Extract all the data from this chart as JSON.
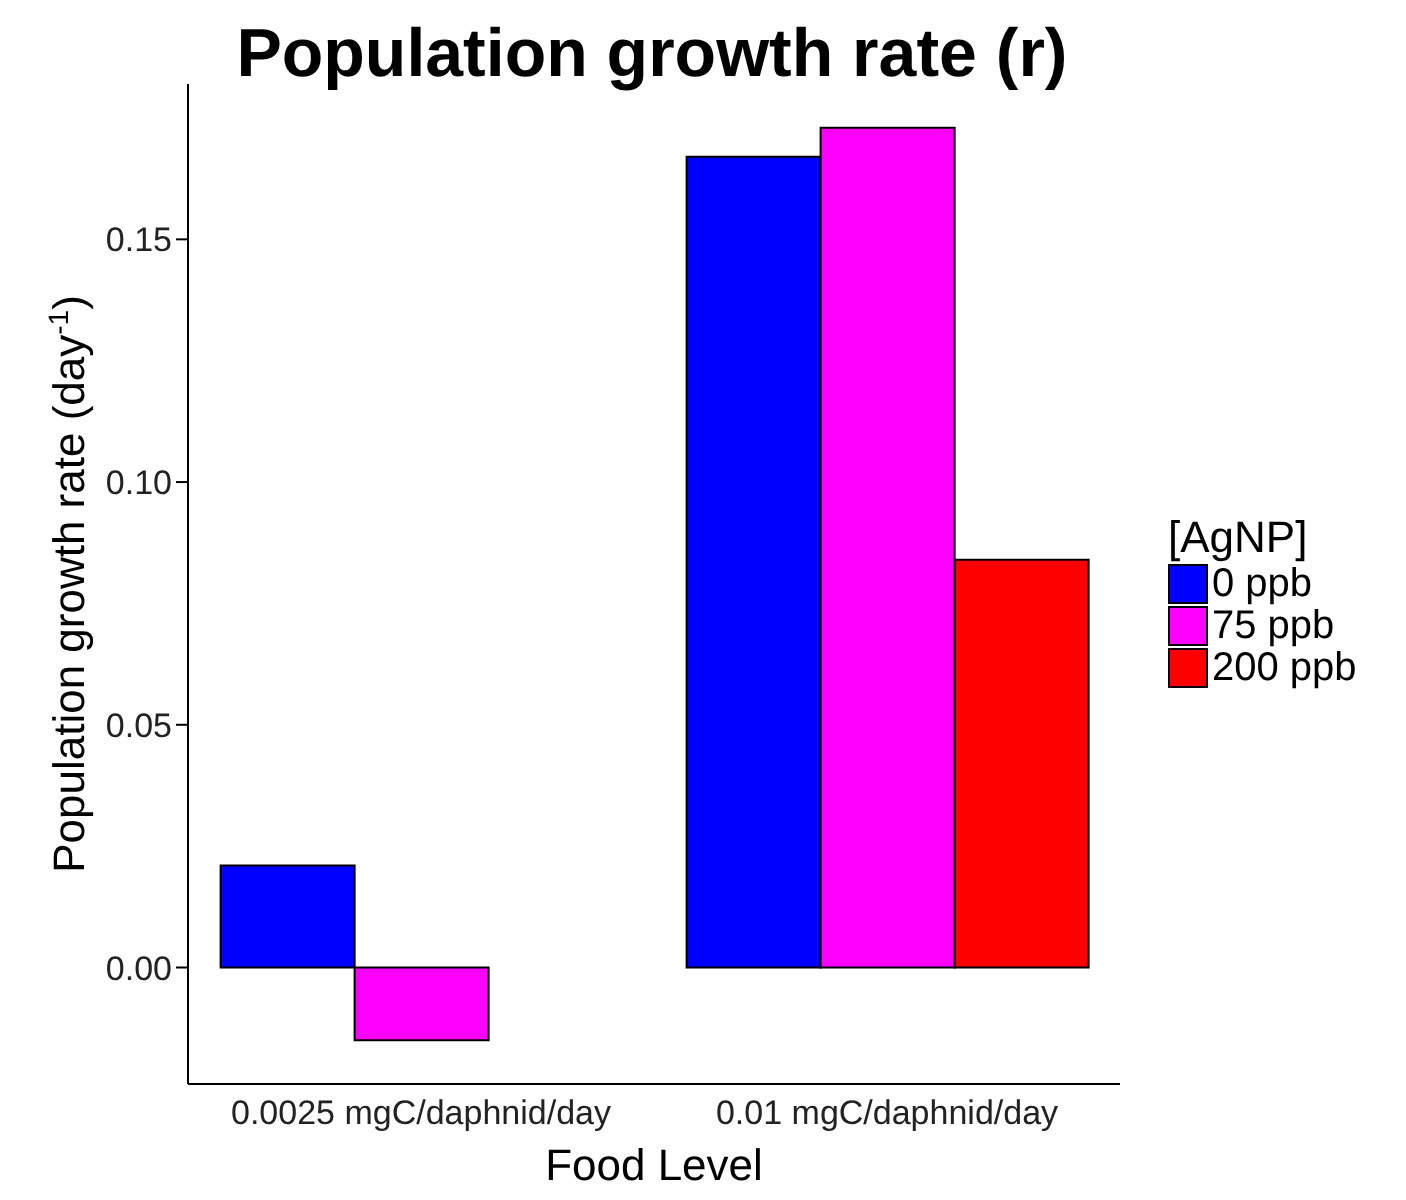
{
  "chart_data": {
    "type": "bar",
    "title": "Population growth rate (r)",
    "xlabel": "Food Level",
    "ylabel": "Population growth rate (day$^{-1}$)",
    "legend_title": "[AgNP]",
    "categories": [
      "0.0025 mgC/daphnid/day",
      "0.01 mgC/daphnid/day"
    ],
    "series": [
      {
        "name": "0 ppb",
        "color": "#0000ff",
        "values": [
          0.021,
          0.167
        ]
      },
      {
        "name": "75 ppb",
        "color": "#ff00ff",
        "values": [
          -0.015,
          0.173
        ]
      },
      {
        "name": "200 ppb",
        "color": "#ff0000",
        "values": [
          0,
          0.084
        ]
      }
    ],
    "ylim": [
      -0.024,
      0.182
    ],
    "yticks": [
      {
        "value": 0,
        "label": "0.00"
      },
      {
        "value": 0.05,
        "label": "0.05"
      },
      {
        "value": 0.1,
        "label": "0.10"
      },
      {
        "value": 0.15,
        "label": "0.15"
      }
    ],
    "grid": false,
    "legend": "right"
  }
}
